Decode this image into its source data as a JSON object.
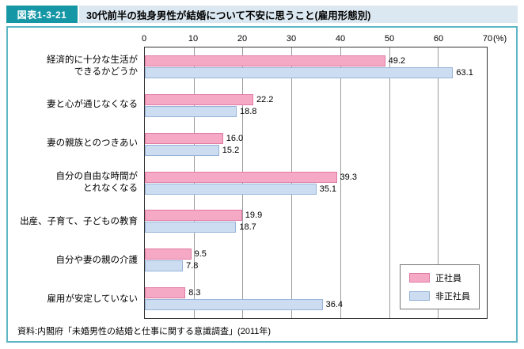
{
  "header": {
    "figure_label": "図表1-3-21",
    "title": "30代前半の独身男性が結婚について不安に思うこと(雇用形態別)"
  },
  "chart_data": {
    "type": "bar",
    "orientation": "horizontal",
    "x_axis": {
      "min": 0,
      "max": 70,
      "ticks": [
        0,
        10,
        20,
        30,
        40,
        50,
        60,
        70
      ],
      "unit": "(%)"
    },
    "categories": [
      "経済的に十分な生活が\nできるかどうか",
      "妻と心が通じなくなる",
      "妻の親族とのつきあい",
      "自分の自由な時間が\nとれなくなる",
      "出産、子育て、子どもの教育",
      "自分や妻の親の介護",
      "雇用が安定していない"
    ],
    "series": [
      {
        "name": "正社員",
        "fill": "#f5a9c4",
        "border": "#e07aa5",
        "values": [
          "49.2",
          "22.2",
          "16.0",
          "39.3",
          "19.9",
          "9.5",
          "8.3"
        ]
      },
      {
        "name": "非正社員",
        "fill": "#ccddf1",
        "border": "#97b3d8",
        "values": [
          "63.1",
          "18.8",
          "15.2",
          "35.1",
          "18.7",
          "7.8",
          "36.4"
        ]
      }
    ],
    "legend_position": "bottom-right",
    "grid": true
  },
  "source": "資料:内閣府「未婚男性の結婚と仕事に関する意識調査」(2011年)",
  "colors": {
    "header_teal": "#1697a6",
    "title_bg": "#dce8f1",
    "frame_border": "#5eb6c5"
  }
}
